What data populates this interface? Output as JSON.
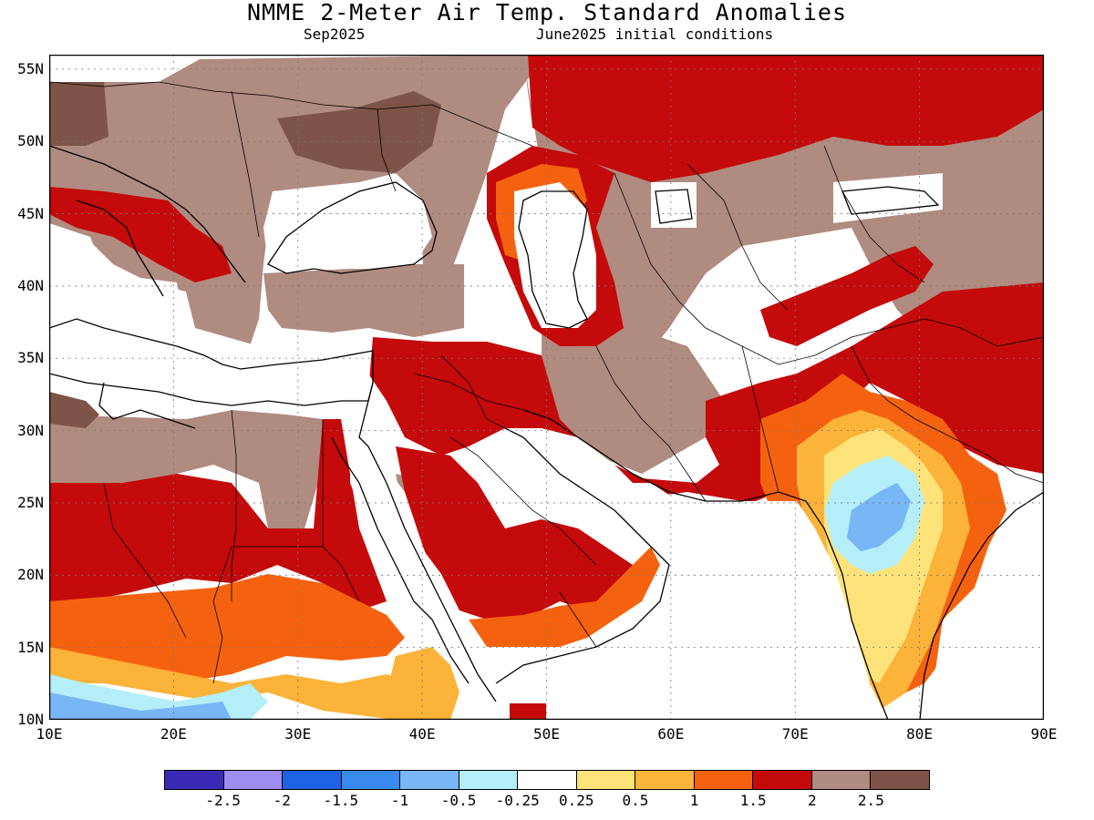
{
  "title": "NMME 2-Meter Air Temp. Standard Anomalies",
  "subtitle_left": "Sep2025",
  "subtitle_right": "June2025 initial conditions",
  "map": {
    "lon_range": [
      10,
      90
    ],
    "lat_range": [
      10,
      56
    ],
    "lat_ticks": [
      {
        "value": 55,
        "label": "55N"
      },
      {
        "value": 50,
        "label": "50N"
      },
      {
        "value": 45,
        "label": "45N"
      },
      {
        "value": 40,
        "label": "40N"
      },
      {
        "value": 35,
        "label": "35N"
      },
      {
        "value": 30,
        "label": "30N"
      },
      {
        "value": 25,
        "label": "25N"
      },
      {
        "value": 20,
        "label": "20N"
      },
      {
        "value": 15,
        "label": "15N"
      },
      {
        "value": 10,
        "label": "10N"
      }
    ],
    "lon_ticks": [
      {
        "value": 10,
        "label": "10E"
      },
      {
        "value": 20,
        "label": "20E"
      },
      {
        "value": 30,
        "label": "30E"
      },
      {
        "value": 40,
        "label": "40E"
      },
      {
        "value": 50,
        "label": "50E"
      },
      {
        "value": 60,
        "label": "60E"
      },
      {
        "value": 70,
        "label": "70E"
      },
      {
        "value": 80,
        "label": "80E"
      },
      {
        "value": 90,
        "label": "90E"
      }
    ],
    "gridlines": true
  },
  "legend": {
    "colors": [
      "#3a2ab5",
      "#9f8cf2",
      "#1e63e3",
      "#3a89ee",
      "#78b6f5",
      "#b4eef8",
      "#ffffff",
      "#fde27a",
      "#fbb33a",
      "#f5620f",
      "#c40a0a",
      "#b08b80",
      "#7d5447"
    ],
    "labels": [
      "-2.5",
      "-2",
      "-1.5",
      "-1",
      "-0.5",
      "-0.25",
      "0.25",
      "0.5",
      "1",
      "1.5",
      "2",
      "2.5"
    ]
  },
  "colors": {
    "brown_light": "#b08b80",
    "brown_dark": "#7d5447",
    "red": "#c40a0a",
    "orange": "#f5620f",
    "amber": "#fbb33a",
    "yellow": "#fde27a",
    "cyan": "#b4eef8",
    "blue_light": "#78b6f5"
  }
}
